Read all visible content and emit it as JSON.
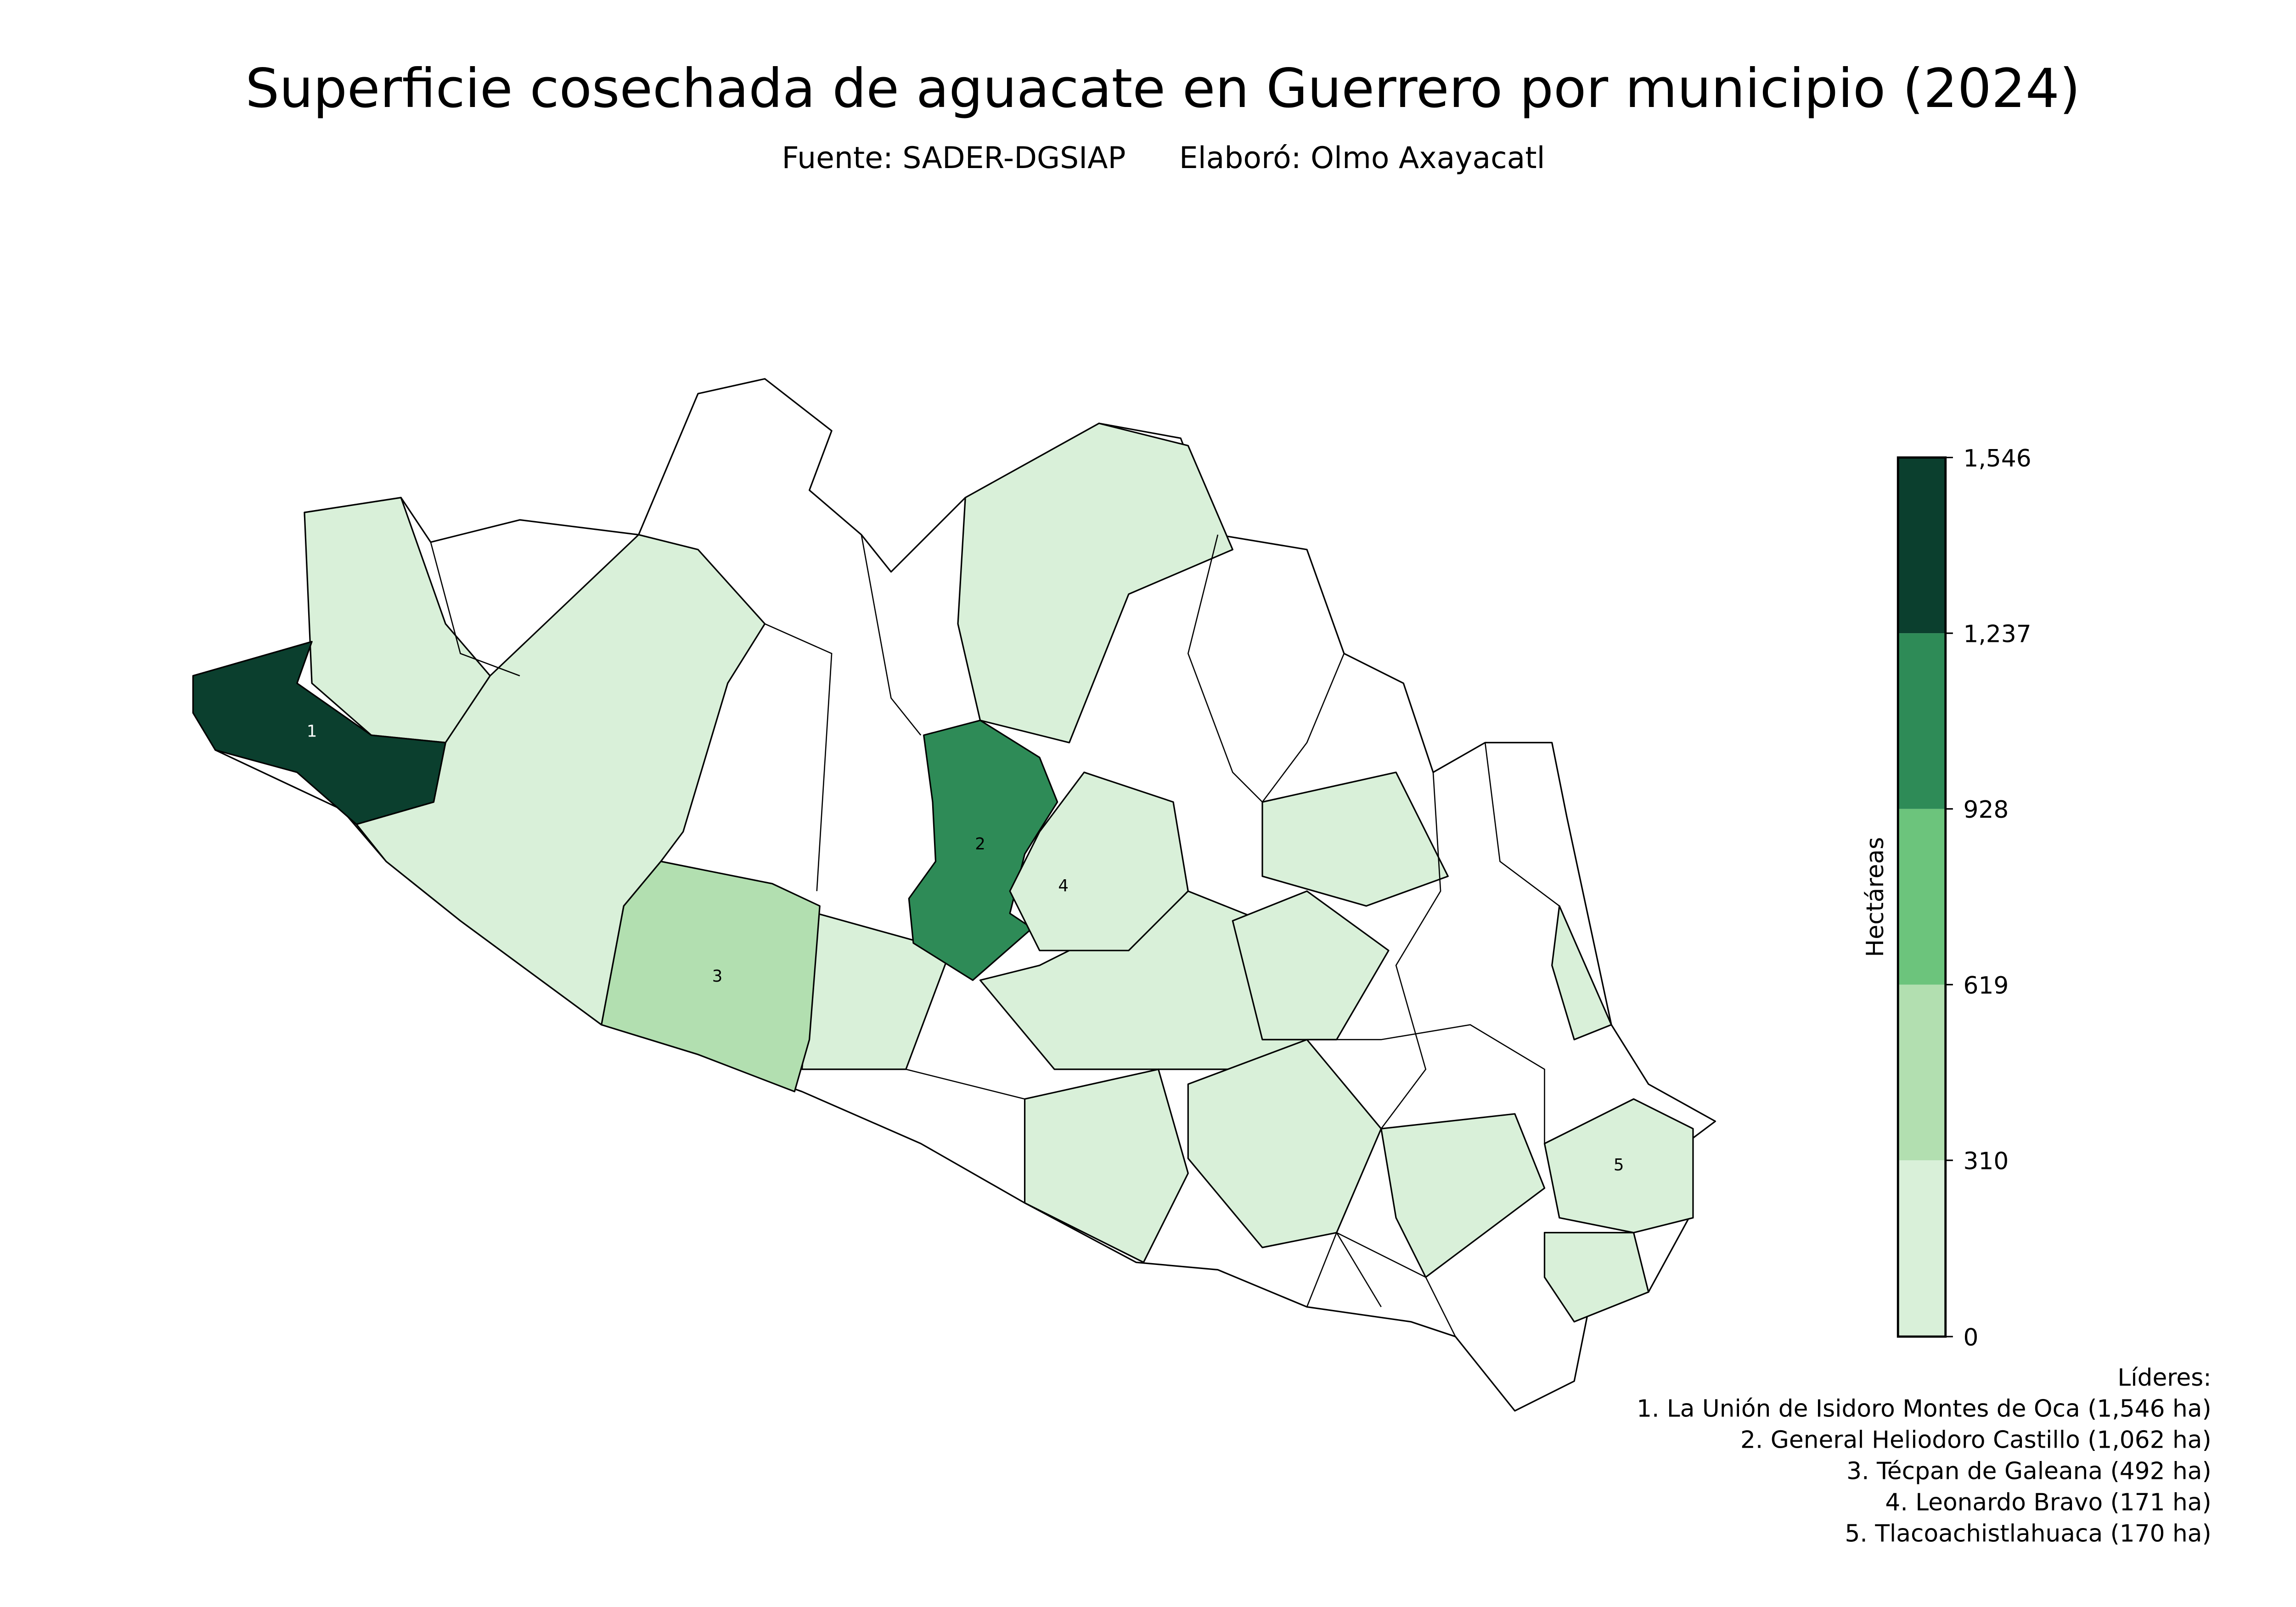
{
  "title": "Superficie cosechada de aguacate en Guerrero por municipio (2024)",
  "source": "Fuente: SADER-DGSIAP",
  "author": "Elaboró: Olmo Axayacatl",
  "colorbar": {
    "label": "Hectáreas",
    "ticks": [
      0,
      310,
      619,
      928,
      {
        "value": 1237,
        "label": "1,237"
      },
      {
        "value": 1546,
        "label": "1,546"
      }
    ],
    "colors": [
      "#d9f0d9",
      "#b2dfb0",
      "#6cc47c",
      "#2e8b57",
      "#0b3f2e"
    ]
  },
  "markers": [
    "1",
    "2",
    "3",
    "4",
    "5"
  ],
  "leaders": {
    "heading": "Líderes:",
    "items": [
      "1. La Unión de Isidoro Montes de Oca (1,546 ha)",
      "2. General Heliodoro Castillo (1,062 ha)",
      "3. Técpan de Galeana (492 ha)",
      "4. Leonardo Bravo (171 ha)",
      "5. Tlacoachistlahuaca (170 ha)"
    ]
  }
}
